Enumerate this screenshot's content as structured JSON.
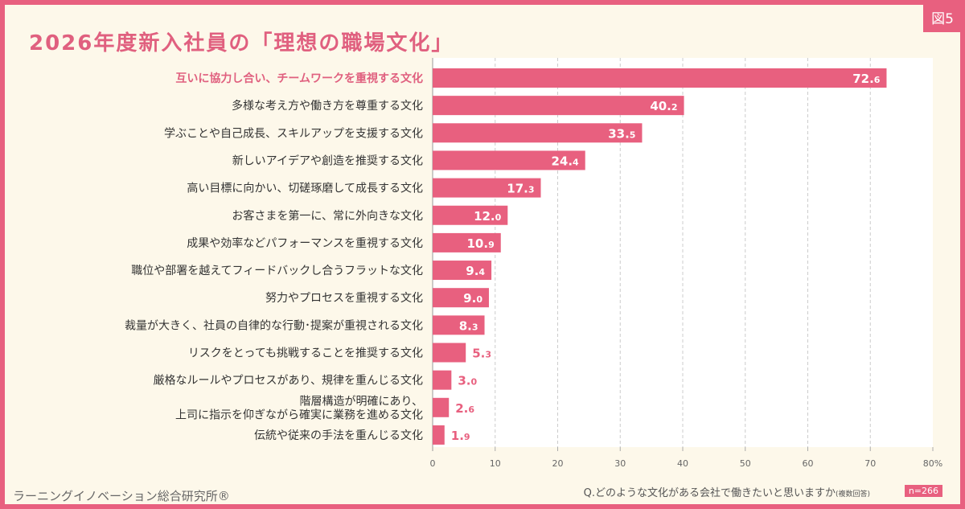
{
  "figure_label": "図5",
  "title": "2026年度新入社員の「理想の職場文化」",
  "organization": "ラーニングイノベーション総合研究所®",
  "question": "Q.どのような文化がある会社で働きたいと思いますか",
  "question_note": "(複数回答)",
  "sample_size": "n=266",
  "colors": {
    "bar": "#e8607f",
    "highlight_label": "#e0607f",
    "frame": "#e8607f",
    "background": "#fdf8ea"
  },
  "chart_data": {
    "type": "bar",
    "orientation": "horizontal",
    "categories": [
      "互いに協力し合い、チームワークを重視する文化",
      "多様な考え方や働き方を尊重する文化",
      "学ぶことや自己成長、スキルアップを支援する文化",
      "新しいアイデアや創造を推奨する文化",
      "高い目標に向かい、切磋琢磨して成長する文化",
      "お客さまを第一に、常に外向きな文化",
      "成果や効率などパフォーマンスを重視する文化",
      "職位や部署を越えてフィードバックし合うフラットな文化",
      "努力やプロセスを重視する文化",
      "裁量が大きく、社員の自律的な行動･提案が重視される文化",
      "リスクをとっても挑戦することを推奨する文化",
      "厳格なルールやプロセスがあり、規律を重んじる文化",
      "階層構造が明確にあり、\n上司に指示を仰ぎながら確実に業務を進める文化",
      "伝統や従来の手法を重んじる文化"
    ],
    "values": [
      72.6,
      40.2,
      33.5,
      24.4,
      17.3,
      12.0,
      10.9,
      9.4,
      9.0,
      8.3,
      5.3,
      3.0,
      2.6,
      1.9
    ],
    "value_labels": [
      "72.6",
      "40.2",
      "33.5",
      "24.4",
      "17.3",
      "12.0",
      "10.9",
      "9.4",
      "9.0",
      "8.3",
      "5.3",
      "3.0",
      "2.6",
      "1.9"
    ],
    "xlim": [
      0,
      80
    ],
    "xticks": [
      "0",
      "10",
      "20",
      "30",
      "40",
      "50",
      "60",
      "70",
      "80%"
    ],
    "grid": true
  }
}
